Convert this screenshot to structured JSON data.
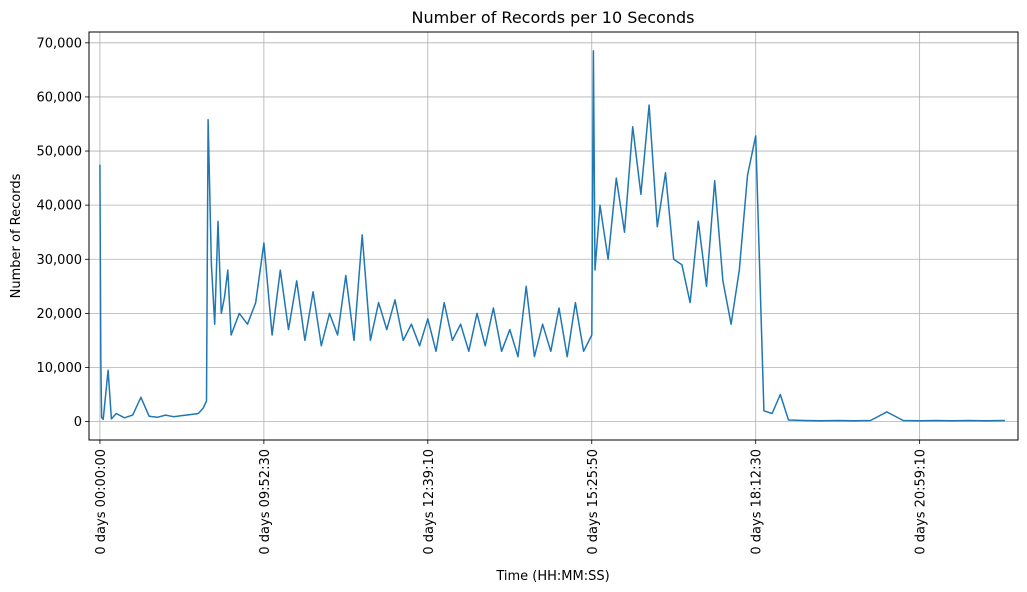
{
  "chart_data": {
    "type": "line",
    "title": "Number of Records per 10 Seconds",
    "xlabel": "Time (HH:MM:SS)",
    "ylabel": "Number of Records",
    "xlim": [
      -0.0667,
      5.6
    ],
    "ylim": [
      -3400,
      72000
    ],
    "y_ticks": [
      {
        "value": 0,
        "label": "0"
      },
      {
        "value": 10000,
        "label": "10,000"
      },
      {
        "value": 20000,
        "label": "20,000"
      },
      {
        "value": 30000,
        "label": "30,000"
      },
      {
        "value": 40000,
        "label": "40,000"
      },
      {
        "value": 50000,
        "label": "50,000"
      },
      {
        "value": 60000,
        "label": "60,000"
      },
      {
        "value": 70000,
        "label": "70,000"
      }
    ],
    "x_ticks": [
      {
        "value": 0,
        "label": "0 days 00:00:00"
      },
      {
        "value": 1,
        "label": "0 days 09:52:30"
      },
      {
        "value": 2,
        "label": "0 days 12:39:10"
      },
      {
        "value": 3,
        "label": "0 days 15:25:50"
      },
      {
        "value": 4,
        "label": "0 days 18:12:30"
      },
      {
        "value": 5,
        "label": "0 days 20:59:10"
      }
    ],
    "grid": true,
    "line_color": "#1f77b4",
    "series": [
      {
        "name": "",
        "x": [
          0,
          0.005,
          0.01,
          0.02,
          0.05,
          0.07,
          0.1,
          0.15,
          0.2,
          0.25,
          0.3,
          0.35,
          0.4,
          0.45,
          0.5,
          0.55,
          0.6,
          0.63,
          0.65,
          0.66,
          0.67,
          0.68,
          0.7,
          0.72,
          0.74,
          0.76,
          0.78,
          0.8,
          0.85,
          0.9,
          0.95,
          1.0,
          1.05,
          1.1,
          1.15,
          1.2,
          1.25,
          1.3,
          1.35,
          1.4,
          1.45,
          1.5,
          1.55,
          1.6,
          1.65,
          1.7,
          1.75,
          1.8,
          1.85,
          1.9,
          1.95,
          2.0,
          2.05,
          2.1,
          2.15,
          2.2,
          2.25,
          2.3,
          2.35,
          2.4,
          2.45,
          2.5,
          2.55,
          2.6,
          2.65,
          2.7,
          2.75,
          2.8,
          2.85,
          2.9,
          2.95,
          3.0,
          3.01,
          3.02,
          3.05,
          3.1,
          3.15,
          3.2,
          3.25,
          3.3,
          3.35,
          3.4,
          3.45,
          3.5,
          3.55,
          3.6,
          3.65,
          3.7,
          3.75,
          3.8,
          3.85,
          3.9,
          3.95,
          4.0,
          4.05,
          4.1,
          4.15,
          4.2,
          4.3,
          4.4,
          4.5,
          4.6,
          4.7,
          4.8,
          4.9,
          5.0,
          5.1,
          5.2,
          5.3,
          5.4,
          5.52
        ],
        "y": [
          47500,
          12000,
          800,
          400,
          9500,
          500,
          1500,
          700,
          1200,
          4500,
          1000,
          800,
          1200,
          900,
          1100,
          1300,
          1500,
          2500,
          3800,
          55800,
          42000,
          29000,
          18000,
          37000,
          20000,
          23000,
          28000,
          16000,
          20000,
          18000,
          22000,
          33000,
          16000,
          28000,
          17000,
          26000,
          15000,
          24000,
          14000,
          20000,
          16000,
          27000,
          15000,
          34500,
          15000,
          22000,
          17000,
          22500,
          15000,
          18000,
          14000,
          19000,
          13000,
          22000,
          15000,
          18000,
          13000,
          20000,
          14000,
          21000,
          13000,
          17000,
          12000,
          25000,
          12000,
          18000,
          13000,
          21000,
          12000,
          22000,
          13000,
          16000,
          68500,
          28000,
          40000,
          30000,
          45000,
          35000,
          54500,
          42000,
          58500,
          36000,
          46000,
          30000,
          29000,
          22000,
          37000,
          25000,
          44500,
          26000,
          18000,
          28000,
          45500,
          52800,
          2000,
          1500,
          5000,
          300,
          200,
          150,
          200,
          150,
          200,
          1800,
          200,
          150,
          200,
          150,
          200,
          150,
          200
        ]
      }
    ]
  }
}
